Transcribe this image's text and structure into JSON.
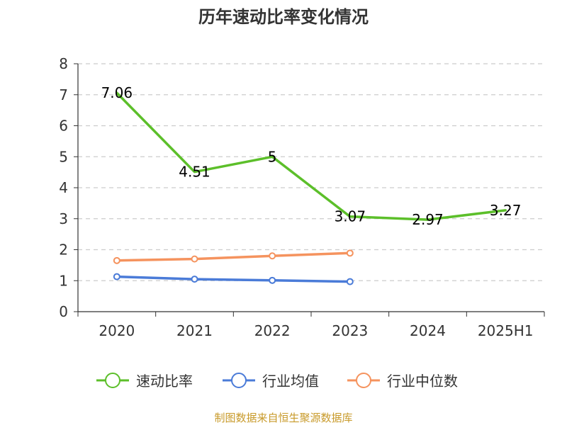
{
  "chart_data": {
    "type": "line",
    "title": "历年速动比率变化情况",
    "categories": [
      "2020",
      "2021",
      "2022",
      "2023",
      "2024",
      "2025H1"
    ],
    "ylim": [
      0,
      8
    ],
    "yticks": [
      "0",
      "1",
      "2",
      "3",
      "4",
      "5",
      "6",
      "7",
      "8"
    ],
    "grid": true,
    "legend_position": "bottom",
    "series": [
      {
        "name": "速动比率",
        "color": "#5cbf2a",
        "values": [
          7.06,
          4.51,
          5,
          3.07,
          2.97,
          3.27
        ],
        "labels": [
          "7.06",
          "4.51",
          "5",
          "3.07",
          "2.97",
          "3.27"
        ],
        "show_labels": true,
        "show_markers": false
      },
      {
        "name": "行业均值",
        "color": "#4a7bd8",
        "values": [
          1.13,
          1.05,
          1.01,
          0.97,
          null,
          null
        ],
        "show_labels": false,
        "show_markers": true
      },
      {
        "name": "行业中位数",
        "color": "#f5935e",
        "values": [
          1.65,
          1.7,
          1.8,
          1.89,
          null,
          null
        ],
        "show_labels": false,
        "show_markers": true
      }
    ],
    "source": "制图数据来自恒生聚源数据库",
    "source_color": "#c89a2a"
  }
}
